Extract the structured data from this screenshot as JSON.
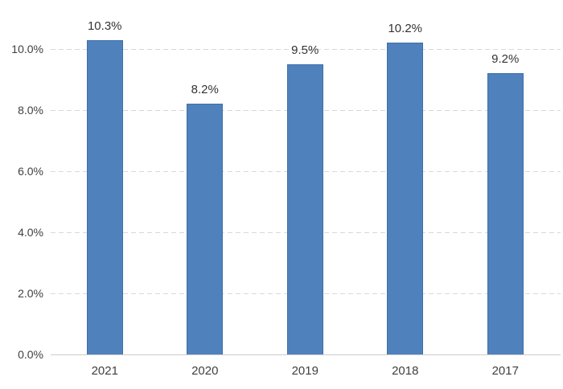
{
  "chart_data": {
    "type": "bar",
    "title": "",
    "xlabel": "",
    "ylabel": "",
    "categories": [
      "2021",
      "2020",
      "2019",
      "2018",
      "2017"
    ],
    "values": [
      10.3,
      8.2,
      9.5,
      10.2,
      9.2
    ],
    "value_labels": [
      "10.3%",
      "8.2%",
      "9.5%",
      "10.2%",
      "9.2%"
    ],
    "ylim": [
      0,
      11.6
    ],
    "yticks": [
      {
        "value": 0,
        "label": "0.0%"
      },
      {
        "value": 2,
        "label": "2.0%"
      },
      {
        "value": 4,
        "label": "4.0%"
      },
      {
        "value": 6,
        "label": "6.0%"
      },
      {
        "value": 8,
        "label": "8.0%"
      },
      {
        "value": 10,
        "label": "10.0%"
      }
    ],
    "grid": "horizontal-dashed",
    "legend": "none",
    "colors": {
      "bar_fill": "#4f81bd",
      "bar_border": "#3e6fa8",
      "gridline": "#d9d9d9",
      "axis_line": "#cdcdcd",
      "tick_text": "#404040",
      "value_text": "#333333"
    }
  }
}
